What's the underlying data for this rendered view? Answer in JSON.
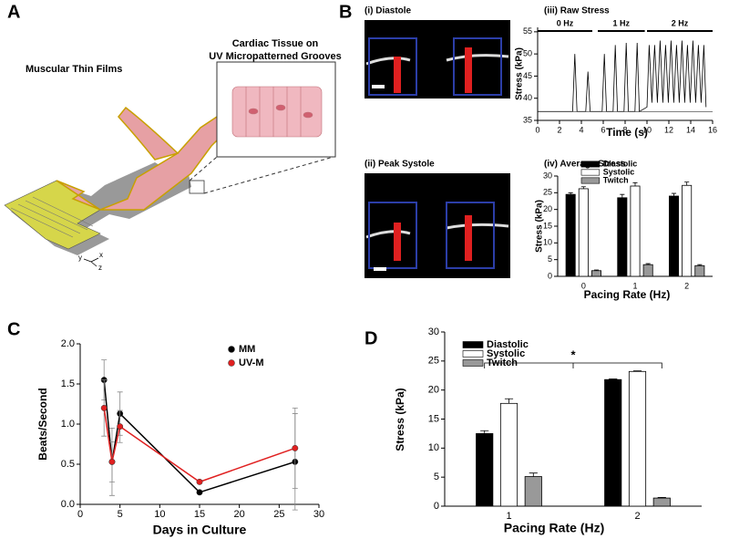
{
  "panel_labels": [
    "A",
    "B",
    "C",
    "D"
  ],
  "illustration": {
    "title": "Muscular Thin Films",
    "inset_title": [
      "Cardiac Tissue on",
      "UV Micropatterned Grooves"
    ],
    "axes": [
      "y",
      "x",
      "z"
    ]
  },
  "images": [
    {
      "title": "(i) Diastole"
    },
    {
      "title": "(ii) Peak Systole"
    }
  ],
  "chart_data": [
    {
      "type": "line",
      "title": "(iii) Raw Stress",
      "x_label": "Time (s)",
      "y_label": "Stress (kPa)",
      "x": [
        0,
        3.2,
        3.4,
        3.6,
        4.4,
        4.6,
        4.8,
        5.9,
        6.1,
        6.3,
        6.9,
        7.1,
        7.3,
        7.9,
        8.1,
        8.3,
        8.9,
        9.1,
        9.3,
        10.0,
        10.2,
        10.45,
        10.7,
        10.95,
        11.2,
        11.45,
        11.7,
        11.95,
        12.2,
        12.45,
        12.7,
        12.95,
        13.2,
        13.45,
        13.7,
        13.95,
        14.2,
        14.45,
        14.7,
        14.95,
        15.2,
        15.4
      ],
      "series": [
        {
          "color": "#000000",
          "values": [
            37,
            37,
            50,
            37,
            37,
            46,
            37,
            37,
            50,
            37,
            37,
            52,
            37,
            37,
            52.5,
            37,
            37,
            52.5,
            37,
            38,
            52,
            39,
            52,
            39,
            53,
            39,
            52,
            39,
            53,
            39,
            52,
            39,
            53,
            39,
            52,
            39,
            53,
            39,
            52,
            39,
            52,
            38
          ]
        }
      ],
      "hline": 37,
      "annotations": [
        {
          "text": "0 Hz",
          "x": [
            0,
            5
          ]
        },
        {
          "text": "1 Hz",
          "x": [
            5.5,
            9.8
          ]
        },
        {
          "text": "2 Hz",
          "x": [
            10,
            16
          ]
        }
      ],
      "xlim": [
        0,
        16
      ],
      "xticks": [
        0,
        2,
        4,
        6,
        8,
        10,
        12,
        14,
        16
      ],
      "ylim": [
        35,
        56
      ],
      "yticks": [
        35,
        40,
        45,
        50,
        55
      ]
    },
    {
      "type": "bar",
      "title": "(iv) Average Stress",
      "x_label": "Pacing Rate (Hz)",
      "y_label": "Stress (kPa)",
      "categories": [
        "0",
        "1",
        "2"
      ],
      "series": [
        {
          "name": "Diastolic",
          "color": "#000000",
          "values": [
            24.5,
            23.5,
            24
          ],
          "errors": [
            0.5,
            1,
            0.8
          ]
        },
        {
          "name": "Systolic",
          "color": "#ffffff",
          "values": [
            26.2,
            27,
            27.2
          ],
          "errors": [
            0.6,
            1,
            1
          ]
        },
        {
          "name": "Twitch",
          "color": "#999999",
          "values": [
            1.7,
            3.5,
            3.2
          ],
          "errors": [
            0.2,
            0.3,
            0.3
          ]
        }
      ],
      "ylim": [
        0,
        30
      ],
      "yticks": [
        0,
        5,
        10,
        15,
        20,
        25,
        30
      ]
    },
    {
      "type": "line",
      "x_label": "Days in Culture",
      "y_label": "Beats/Second",
      "x": [
        3,
        4,
        5,
        15,
        27
      ],
      "series": [
        {
          "name": "MM",
          "color": "#000000",
          "values": [
            1.55,
            0.53,
            1.13,
            0.15,
            0.53
          ],
          "errors": [
            0.25,
            0.42,
            0.27,
            0.02,
            0.6
          ]
        },
        {
          "name": "UV-M",
          "color": "#e02020",
          "values": [
            1.2,
            0.53,
            0.97,
            0.28,
            0.7
          ],
          "errors": [
            0.35,
            0.25,
            0.2,
            0.02,
            0.5
          ]
        }
      ],
      "xlim": [
        0,
        30
      ],
      "xticks": [
        0,
        5,
        10,
        15,
        20,
        25,
        30
      ],
      "ylim": [
        0,
        2
      ],
      "yticks": [
        {
          "value": 0,
          "label": "0.0"
        },
        {
          "value": 0.5,
          "label": "0.5"
        },
        {
          "value": 1,
          "label": "1.0"
        },
        {
          "value": 1.5,
          "label": "1.5"
        },
        {
          "value": 2,
          "label": "2.0"
        }
      ]
    },
    {
      "type": "bar",
      "x_label": "Pacing Rate (Hz)",
      "y_label": "Stress (kPa)",
      "categories": [
        "1",
        "2"
      ],
      "series": [
        {
          "name": "Diastolic",
          "color": "#000000",
          "values": [
            12.5,
            21.8
          ],
          "errors": [
            0.5,
            0.1
          ]
        },
        {
          "name": "Systolic",
          "color": "#ffffff",
          "values": [
            17.7,
            23.2
          ],
          "errors": [
            0.8,
            0.1
          ]
        },
        {
          "name": "Twitch",
          "color": "#999999",
          "values": [
            5.1,
            1.4
          ],
          "errors": [
            0.6,
            0.1
          ]
        }
      ],
      "annotations": [
        {
          "text": "*"
        }
      ],
      "ylim": [
        0,
        30
      ],
      "yticks": [
        0,
        5,
        10,
        15,
        20,
        25,
        30
      ]
    }
  ]
}
